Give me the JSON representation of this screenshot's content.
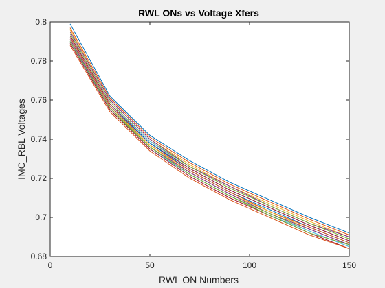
{
  "chart_data": {
    "type": "line",
    "title": "RWL ONs vs Voltage Xfers",
    "xlabel": "RWL ON Numbers",
    "ylabel": "IMC_RBL Voltages",
    "xlim": [
      0,
      150
    ],
    "ylim": [
      0.68,
      0.8
    ],
    "xticks": [
      0,
      50,
      100,
      150
    ],
    "xtick_labels": [
      "0",
      "50",
      "100",
      "150"
    ],
    "yticks": [
      0.68,
      0.7,
      0.72,
      0.74,
      0.76,
      0.78,
      0.8
    ],
    "ytick_labels": [
      "0.68",
      "0.7",
      "0.72",
      "0.74",
      "0.76",
      "0.78",
      "0.8"
    ],
    "grid": false,
    "legend": "none",
    "x": [
      10,
      30,
      50,
      70,
      90,
      110,
      130,
      150
    ],
    "series": [
      {
        "color": "#0072BD",
        "values": [
          0.799,
          0.762,
          0.742,
          0.729,
          0.718,
          0.709,
          0.7,
          0.692
        ]
      },
      {
        "color": "#D95319",
        "values": [
          0.797,
          0.761,
          0.741,
          0.728,
          0.717,
          0.708,
          0.699,
          0.691
        ]
      },
      {
        "color": "#EDB120",
        "values": [
          0.796,
          0.76,
          0.74,
          0.727,
          0.716,
          0.707,
          0.698,
          0.69
        ]
      },
      {
        "color": "#7E2F8E",
        "values": [
          0.795,
          0.76,
          0.74,
          0.726,
          0.716,
          0.706,
          0.697,
          0.69
        ]
      },
      {
        "color": "#77AC30",
        "values": [
          0.794,
          0.759,
          0.739,
          0.726,
          0.715,
          0.706,
          0.697,
          0.689
        ]
      },
      {
        "color": "#4DBEEE",
        "values": [
          0.793,
          0.758,
          0.739,
          0.725,
          0.714,
          0.705,
          0.696,
          0.688
        ]
      },
      {
        "color": "#A2142F",
        "values": [
          0.793,
          0.758,
          0.738,
          0.725,
          0.714,
          0.705,
          0.696,
          0.688
        ]
      },
      {
        "color": "#0072BD",
        "values": [
          0.792,
          0.757,
          0.738,
          0.724,
          0.713,
          0.704,
          0.695,
          0.687
        ]
      },
      {
        "color": "#D95319",
        "values": [
          0.792,
          0.757,
          0.737,
          0.724,
          0.713,
          0.703,
          0.695,
          0.687
        ]
      },
      {
        "color": "#EDB120",
        "values": [
          0.791,
          0.756,
          0.737,
          0.723,
          0.712,
          0.703,
          0.694,
          0.686
        ]
      },
      {
        "color": "#7E2F8E",
        "values": [
          0.791,
          0.756,
          0.736,
          0.723,
          0.712,
          0.702,
          0.694,
          0.686
        ]
      },
      {
        "color": "#77AC30",
        "values": [
          0.79,
          0.755,
          0.736,
          0.722,
          0.711,
          0.702,
          0.693,
          0.685
        ]
      },
      {
        "color": "#4DBEEE",
        "values": [
          0.79,
          0.755,
          0.735,
          0.722,
          0.711,
          0.701,
          0.693,
          0.685
        ]
      },
      {
        "color": "#A2142F",
        "values": [
          0.789,
          0.755,
          0.735,
          0.721,
          0.71,
          0.701,
          0.692,
          0.684
        ]
      },
      {
        "color": "#D95319",
        "values": [
          0.788,
          0.754,
          0.734,
          0.72,
          0.709,
          0.7,
          0.691,
          0.684
        ]
      },
      {
        "color": "#77AC30",
        "values": [
          0.79,
          0.756,
          0.736,
          0.722,
          0.711,
          0.701,
          0.692,
          0.686
        ]
      }
    ]
  }
}
